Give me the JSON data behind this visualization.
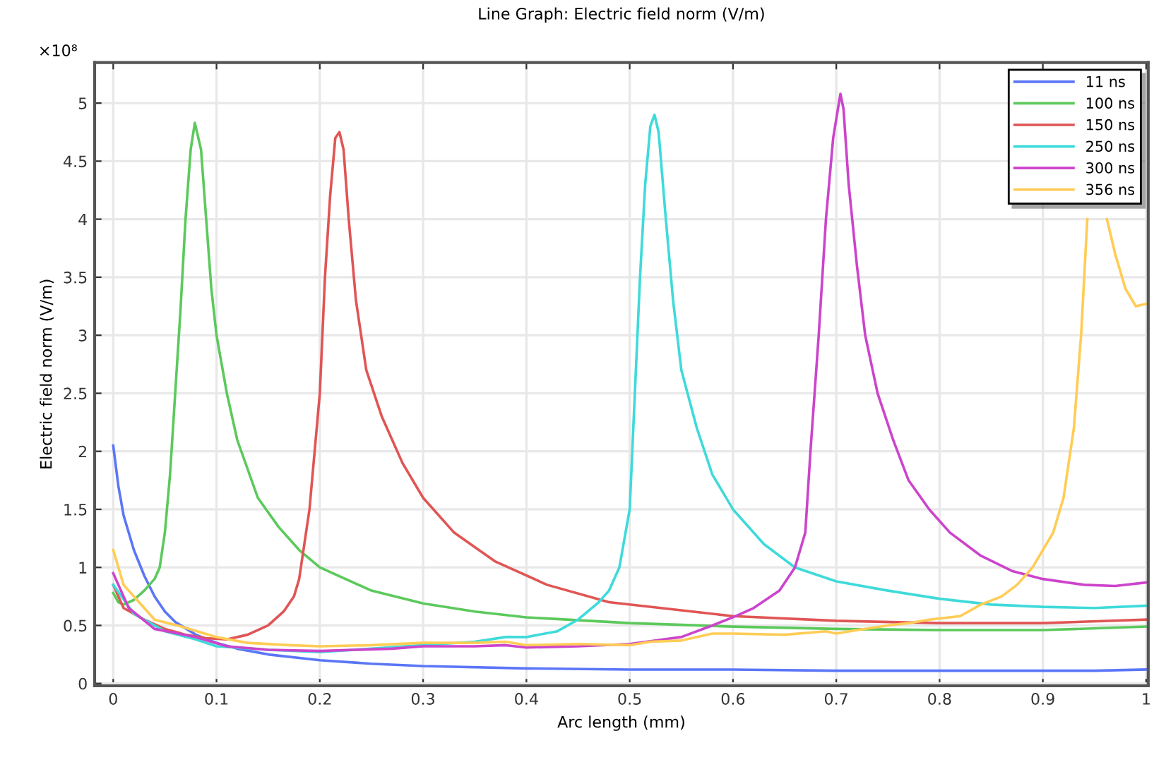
{
  "chart_data": {
    "type": "line",
    "title": "Line Graph: Electric field norm (V/m)",
    "xlabel": "Arc length (mm)",
    "ylabel": "Electric field norm (V/m)",
    "annotations": [
      "×10⁸"
    ],
    "xlim": [
      -0.018,
      1.002
    ],
    "ylim": [
      -0.02,
      5.35
    ],
    "xticks": [
      0,
      0.1,
      0.2,
      0.3,
      0.4,
      0.5,
      0.6,
      0.7,
      0.8,
      0.9,
      1
    ],
    "yticks": [
      0,
      0.5,
      1,
      1.5,
      2,
      2.5,
      3,
      3.5,
      4,
      4.5,
      5
    ],
    "grid": true,
    "legend": "top right",
    "marker": "none",
    "line_style": "solid",
    "series": [
      {
        "name": "11 ns",
        "color": "#5b76f7",
        "x": [
          0,
          0.005,
          0.01,
          0.02,
          0.03,
          0.04,
          0.05,
          0.06,
          0.08,
          0.1,
          0.12,
          0.15,
          0.2,
          0.25,
          0.3,
          0.4,
          0.5,
          0.6,
          0.7,
          0.8,
          0.9,
          0.95,
          1.0
        ],
        "values": [
          2.05,
          1.7,
          1.45,
          1.15,
          0.93,
          0.75,
          0.62,
          0.53,
          0.42,
          0.35,
          0.3,
          0.25,
          0.2,
          0.17,
          0.15,
          0.13,
          0.12,
          0.12,
          0.11,
          0.11,
          0.11,
          0.11,
          0.12
        ]
      },
      {
        "name": "100 ns",
        "color": "#5cc95c",
        "x": [
          0,
          0.005,
          0.01,
          0.02,
          0.03,
          0.04,
          0.045,
          0.05,
          0.055,
          0.06,
          0.065,
          0.07,
          0.075,
          0.079,
          0.085,
          0.09,
          0.095,
          0.1,
          0.11,
          0.12,
          0.14,
          0.16,
          0.18,
          0.2,
          0.25,
          0.3,
          0.35,
          0.4,
          0.5,
          0.6,
          0.7,
          0.8,
          0.9,
          1.0
        ],
        "values": [
          0.78,
          0.7,
          0.68,
          0.72,
          0.8,
          0.9,
          1.0,
          1.3,
          1.8,
          2.5,
          3.2,
          4.0,
          4.6,
          4.83,
          4.6,
          4.0,
          3.4,
          3.0,
          2.5,
          2.1,
          1.6,
          1.35,
          1.15,
          1.0,
          0.8,
          0.69,
          0.62,
          0.57,
          0.52,
          0.49,
          0.47,
          0.46,
          0.46,
          0.49
        ]
      },
      {
        "name": "150 ns",
        "color": "#e05555",
        "x": [
          0,
          0.01,
          0.03,
          0.05,
          0.07,
          0.09,
          0.11,
          0.13,
          0.15,
          0.165,
          0.175,
          0.18,
          0.19,
          0.2,
          0.205,
          0.21,
          0.215,
          0.219,
          0.223,
          0.228,
          0.235,
          0.245,
          0.26,
          0.28,
          0.3,
          0.33,
          0.37,
          0.42,
          0.48,
          0.55,
          0.6,
          0.7,
          0.8,
          0.9,
          1.0
        ],
        "values": [
          0.85,
          0.65,
          0.55,
          0.47,
          0.42,
          0.39,
          0.38,
          0.42,
          0.5,
          0.62,
          0.75,
          0.9,
          1.5,
          2.5,
          3.5,
          4.2,
          4.7,
          4.75,
          4.6,
          4.0,
          3.3,
          2.7,
          2.3,
          1.9,
          1.6,
          1.3,
          1.05,
          0.85,
          0.7,
          0.63,
          0.58,
          0.54,
          0.52,
          0.52,
          0.55
        ]
      },
      {
        "name": "250 ns",
        "color": "#3fdada",
        "x": [
          0,
          0.02,
          0.05,
          0.08,
          0.1,
          0.15,
          0.2,
          0.25,
          0.3,
          0.35,
          0.38,
          0.4,
          0.43,
          0.45,
          0.47,
          0.48,
          0.49,
          0.5,
          0.505,
          0.51,
          0.515,
          0.52,
          0.524,
          0.528,
          0.535,
          0.542,
          0.55,
          0.565,
          0.58,
          0.6,
          0.63,
          0.66,
          0.7,
          0.75,
          0.8,
          0.85,
          0.9,
          0.95,
          1.0
        ],
        "values": [
          0.85,
          0.6,
          0.45,
          0.38,
          0.32,
          0.29,
          0.27,
          0.3,
          0.33,
          0.36,
          0.4,
          0.4,
          0.45,
          0.55,
          0.7,
          0.8,
          1.0,
          1.5,
          2.5,
          3.5,
          4.3,
          4.8,
          4.9,
          4.75,
          4.0,
          3.3,
          2.7,
          2.2,
          1.8,
          1.5,
          1.2,
          1.0,
          0.88,
          0.8,
          0.73,
          0.68,
          0.66,
          0.65,
          0.67
        ]
      },
      {
        "name": "300 ns",
        "color": "#cc44cc",
        "x": [
          0,
          0.015,
          0.04,
          0.08,
          0.11,
          0.15,
          0.2,
          0.27,
          0.3,
          0.35,
          0.38,
          0.4,
          0.45,
          0.5,
          0.55,
          0.58,
          0.6,
          0.62,
          0.645,
          0.66,
          0.67,
          0.675,
          0.683,
          0.69,
          0.697,
          0.704,
          0.707,
          0.712,
          0.72,
          0.728,
          0.74,
          0.755,
          0.77,
          0.79,
          0.81,
          0.84,
          0.87,
          0.9,
          0.94,
          0.97,
          1.0
        ],
        "values": [
          0.95,
          0.65,
          0.47,
          0.4,
          0.32,
          0.29,
          0.28,
          0.3,
          0.32,
          0.32,
          0.33,
          0.31,
          0.32,
          0.34,
          0.4,
          0.5,
          0.57,
          0.65,
          0.8,
          1.0,
          1.3,
          2.0,
          3.0,
          4.0,
          4.7,
          5.08,
          4.95,
          4.3,
          3.6,
          3.0,
          2.5,
          2.1,
          1.75,
          1.5,
          1.3,
          1.1,
          0.97,
          0.9,
          0.85,
          0.84,
          0.87
        ]
      },
      {
        "name": "356 ns",
        "color": "#ffcc55",
        "x": [
          0,
          0.01,
          0.025,
          0.04,
          0.07,
          0.1,
          0.13,
          0.17,
          0.2,
          0.25,
          0.3,
          0.35,
          0.38,
          0.4,
          0.45,
          0.5,
          0.52,
          0.55,
          0.58,
          0.6,
          0.65,
          0.69,
          0.7,
          0.72,
          0.75,
          0.77,
          0.79,
          0.82,
          0.84,
          0.86,
          0.875,
          0.89,
          0.91,
          0.92,
          0.93,
          0.937,
          0.943,
          0.95,
          0.962,
          0.97,
          0.98,
          0.99,
          1.0
        ],
        "values": [
          1.15,
          0.85,
          0.7,
          0.55,
          0.48,
          0.4,
          0.35,
          0.33,
          0.32,
          0.33,
          0.35,
          0.35,
          0.36,
          0.33,
          0.34,
          0.33,
          0.36,
          0.37,
          0.43,
          0.43,
          0.42,
          0.45,
          0.43,
          0.46,
          0.5,
          0.52,
          0.55,
          0.58,
          0.68,
          0.75,
          0.85,
          1.0,
          1.3,
          1.6,
          2.2,
          3.0,
          4.0,
          null,
          4.0,
          3.7,
          3.4,
          3.25,
          3.27
        ]
      }
    ]
  }
}
